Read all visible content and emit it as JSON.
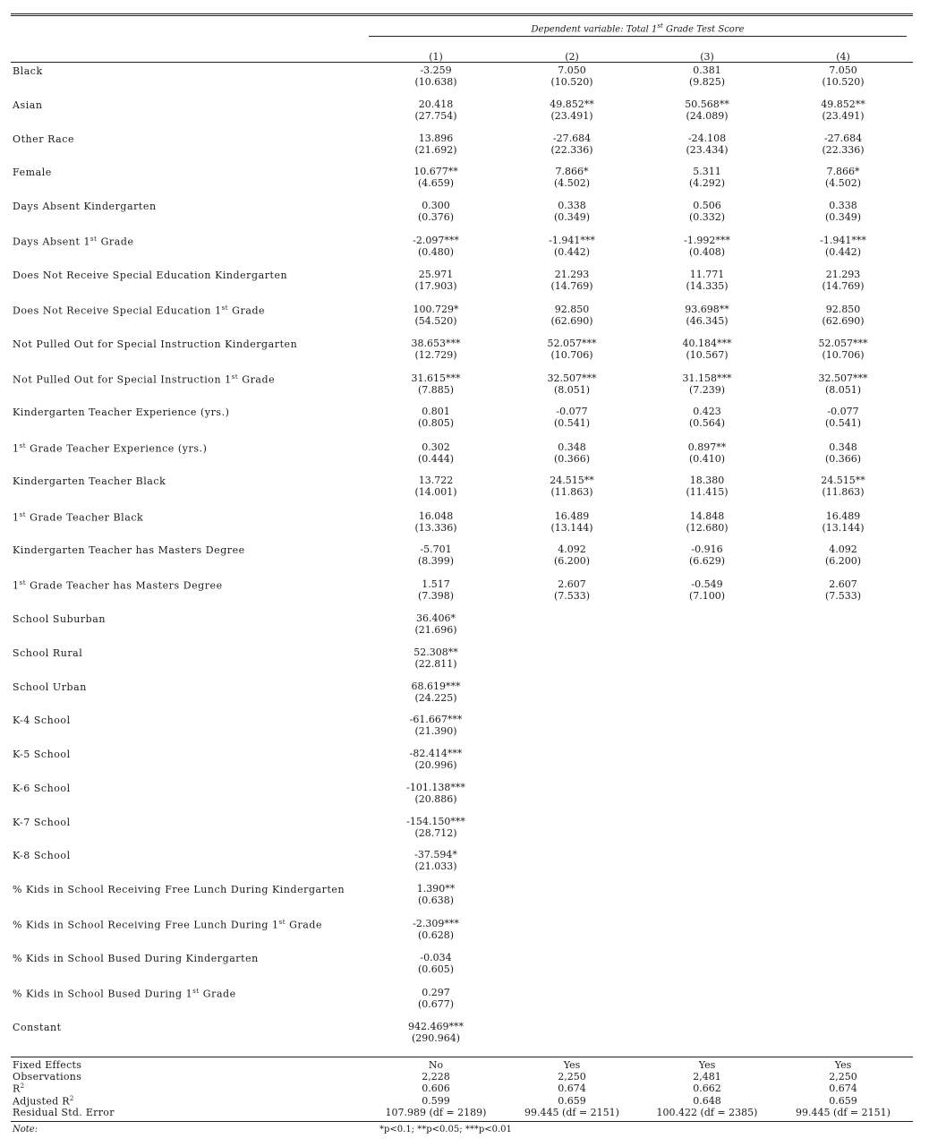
{
  "dependent_variable_label": "Dependent variable: Total 1st Grade Test Score",
  "column_numbers": [
    "(1)",
    "(2)",
    "(3)",
    "(4)"
  ],
  "rows": [
    {
      "label": "Black",
      "cells": [
        [
          "-3.259",
          "(10.638)"
        ],
        [
          "7.050",
          "(10.520)"
        ],
        [
          "0.381",
          "(9.825)"
        ],
        [
          "7.050",
          "(10.520)"
        ]
      ]
    },
    {
      "label": "Asian",
      "cells": [
        [
          "20.418",
          "(27.754)"
        ],
        [
          "49.852**",
          "(23.491)"
        ],
        [
          "50.568**",
          "(24.089)"
        ],
        [
          "49.852**",
          "(23.491)"
        ]
      ]
    },
    {
      "label": "Other Race",
      "cells": [
        [
          "13.896",
          "(21.692)"
        ],
        [
          "-27.684",
          "(22.336)"
        ],
        [
          "-24.108",
          "(23.434)"
        ],
        [
          "-27.684",
          "(22.336)"
        ]
      ]
    },
    {
      "label": "Female",
      "cells": [
        [
          "10.677**",
          "(4.659)"
        ],
        [
          "7.866*",
          "(4.502)"
        ],
        [
          "5.311",
          "(4.292)"
        ],
        [
          "7.866*",
          "(4.502)"
        ]
      ]
    },
    {
      "label": "Days Absent Kindergarten",
      "cells": [
        [
          "0.300",
          "(0.376)"
        ],
        [
          "0.338",
          "(0.349)"
        ],
        [
          "0.506",
          "(0.332)"
        ],
        [
          "0.338",
          "(0.349)"
        ]
      ]
    },
    {
      "label": "Days Absent 1st Grade",
      "cells": [
        [
          "-2.097***",
          "(0.480)"
        ],
        [
          "-1.941***",
          "(0.442)"
        ],
        [
          "-1.992***",
          "(0.408)"
        ],
        [
          "-1.941***",
          "(0.442)"
        ]
      ]
    },
    {
      "label": "Does Not Receive Special Education Kindergarten",
      "cells": [
        [
          "25.971",
          "(17.903)"
        ],
        [
          "21.293",
          "(14.769)"
        ],
        [
          "11.771",
          "(14.335)"
        ],
        [
          "21.293",
          "(14.769)"
        ]
      ]
    },
    {
      "label": "Does Not Receive Special Education 1st Grade",
      "cells": [
        [
          "100.729*",
          "(54.520)"
        ],
        [
          "92.850",
          "(62.690)"
        ],
        [
          "93.698**",
          "(46.345)"
        ],
        [
          "92.850",
          "(62.690)"
        ]
      ]
    },
    {
      "label": "Not Pulled Out for Special Instruction Kindergarten",
      "cells": [
        [
          "38.653***",
          "(12.729)"
        ],
        [
          "52.057***",
          "(10.706)"
        ],
        [
          "40.184***",
          "(10.567)"
        ],
        [
          "52.057***",
          "(10.706)"
        ]
      ]
    },
    {
      "label": "Not Pulled Out for Special Instruction 1st Grade",
      "cells": [
        [
          "31.615***",
          "(7.885)"
        ],
        [
          "32.507***",
          "(8.051)"
        ],
        [
          "31.158***",
          "(7.239)"
        ],
        [
          "32.507***",
          "(8.051)"
        ]
      ]
    },
    {
      "label": "Kindergarten Teacher Experience (yrs.)",
      "cells": [
        [
          "0.801",
          "(0.805)"
        ],
        [
          "-0.077",
          "(0.541)"
        ],
        [
          "0.423",
          "(0.564)"
        ],
        [
          "-0.077",
          "(0.541)"
        ]
      ]
    },
    {
      "label": "1st Grade Teacher Experience (yrs.)",
      "cells": [
        [
          "0.302",
          "(0.444)"
        ],
        [
          "0.348",
          "(0.366)"
        ],
        [
          "0.897**",
          "(0.410)"
        ],
        [
          "0.348",
          "(0.366)"
        ]
      ]
    },
    {
      "label": "Kindergarten Teacher Black",
      "cells": [
        [
          "13.722",
          "(14.001)"
        ],
        [
          "24.515**",
          "(11.863)"
        ],
        [
          "18.380",
          "(11.415)"
        ],
        [
          "24.515**",
          "(11.863)"
        ]
      ]
    },
    {
      "label": "1st Grade Teacher Black",
      "cells": [
        [
          "16.048",
          "(13.336)"
        ],
        [
          "16.489",
          "(13.144)"
        ],
        [
          "14.848",
          "(12.680)"
        ],
        [
          "16.489",
          "(13.144)"
        ]
      ]
    },
    {
      "label": "Kindergarten Teacher has Masters Degree",
      "cells": [
        [
          "-5.701",
          "(8.399)"
        ],
        [
          "4.092",
          "(6.200)"
        ],
        [
          "-0.916",
          "(6.629)"
        ],
        [
          "4.092",
          "(6.200)"
        ]
      ]
    },
    {
      "label": "1st Grade Teacher has Masters Degree",
      "cells": [
        [
          "1.517",
          "(7.398)"
        ],
        [
          "2.607",
          "(7.533)"
        ],
        [
          "-0.549",
          "(7.100)"
        ],
        [
          "2.607",
          "(7.533)"
        ]
      ]
    },
    {
      "label": "School Suburban",
      "cells": [
        [
          "36.406*",
          "(21.696)"
        ]
      ]
    },
    {
      "label": "School Rural",
      "cells": [
        [
          "52.308**",
          "(22.811)"
        ]
      ]
    },
    {
      "label": "School Urban",
      "cells": [
        [
          "68.619***",
          "(24.225)"
        ]
      ]
    },
    {
      "label": "K-4 School",
      "cells": [
        [
          "-61.667***",
          "(21.390)"
        ]
      ]
    },
    {
      "label": "K-5 School",
      "cells": [
        [
          "-82.414***",
          "(20.996)"
        ]
      ]
    },
    {
      "label": "K-6 School",
      "cells": [
        [
          "-101.138***",
          "(20.886)"
        ]
      ]
    },
    {
      "label": "K-7 School",
      "cells": [
        [
          "-154.150***",
          "(28.712)"
        ]
      ]
    },
    {
      "label": "K-8 School",
      "cells": [
        [
          "-37.594*",
          "(21.033)"
        ]
      ]
    },
    {
      "label": "% Kids in School Receiving Free Lunch During Kindergarten",
      "cells": [
        [
          "1.390**",
          "(0.638)"
        ]
      ]
    },
    {
      "label": "% Kids in School Receiving Free Lunch During 1st Grade",
      "cells": [
        [
          "-2.309***",
          "(0.628)"
        ]
      ]
    },
    {
      "label": "% Kids in School Bused During Kindergarten",
      "cells": [
        [
          "-0.034",
          "(0.605)"
        ]
      ]
    },
    {
      "label": "% Kids in School Bused During 1st Grade",
      "cells": [
        [
          "0.297",
          "(0.677)"
        ]
      ]
    },
    {
      "label": "Constant",
      "cells": [
        [
          "942.469***",
          "(290.964)"
        ]
      ]
    }
  ],
  "stats": [
    {
      "label": "Fixed Effects",
      "values": [
        "No",
        "Yes",
        "Yes",
        "Yes"
      ]
    },
    {
      "label": "Observations",
      "values": [
        "2,228",
        "2,250",
        "2,481",
        "2,250"
      ]
    },
    {
      "label": "R2",
      "values": [
        "0.606",
        "0.674",
        "0.662",
        "0.674"
      ]
    },
    {
      "label": "Adjusted R2",
      "values": [
        "0.599",
        "0.659",
        "0.648",
        "0.659"
      ]
    },
    {
      "label": "Residual Std. Error",
      "values": [
        "107.989 (df = 2189)",
        "99.445 (df = 2151)",
        "100.422 (df = 2385)",
        "99.445 (df = 2151)"
      ]
    }
  ],
  "note": {
    "label": "Note:",
    "text": "*p<0.1; **p<0.05; ***p<0.01"
  }
}
